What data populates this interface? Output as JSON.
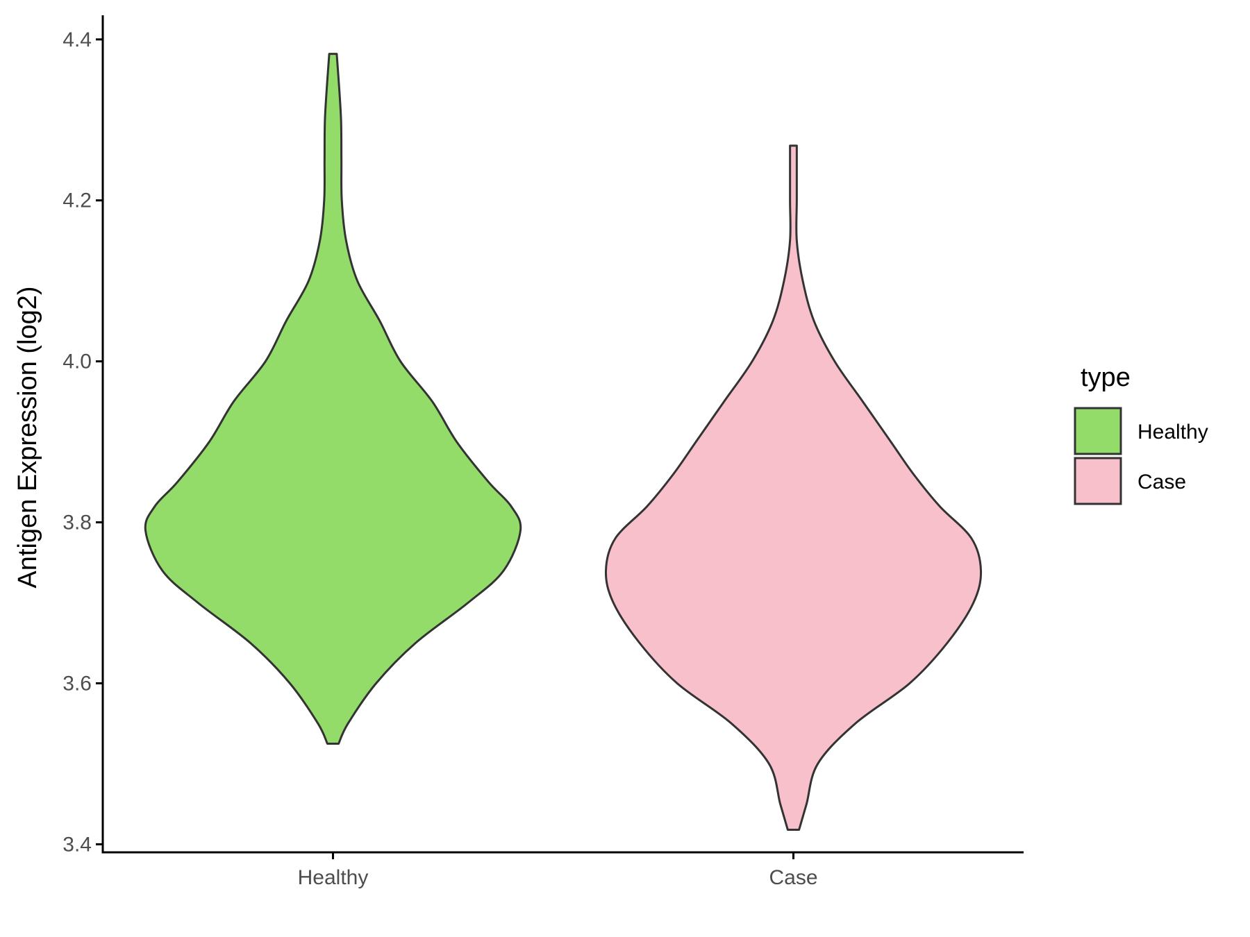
{
  "chart_data": {
    "type": "violin",
    "ylabel": "Antigen Expression (log2)",
    "xlabel": "",
    "ylim": [
      3.39,
      4.43
    ],
    "yticks": [
      3.4,
      3.6,
      3.8,
      4.0,
      4.2,
      4.4
    ],
    "ytick_labels": [
      "3.4",
      "3.6",
      "3.8",
      "4.0",
      "4.2",
      "4.4"
    ],
    "categories": [
      "Healthy",
      "Case"
    ],
    "grid": false,
    "legend": {
      "title": "type",
      "placement": "right",
      "entries": [
        "Healthy",
        "Case"
      ]
    },
    "series": [
      {
        "name": "Healthy",
        "color": "#93dc6a",
        "min": 3.525,
        "max": 4.382,
        "profile": [
          [
            3.525,
            0.03
          ],
          [
            3.55,
            0.08
          ],
          [
            3.6,
            0.23
          ],
          [
            3.65,
            0.44
          ],
          [
            3.7,
            0.72
          ],
          [
            3.74,
            0.91
          ],
          [
            3.79,
            1.0
          ],
          [
            3.82,
            0.95
          ],
          [
            3.85,
            0.83
          ],
          [
            3.9,
            0.66
          ],
          [
            3.95,
            0.53
          ],
          [
            4.0,
            0.36
          ],
          [
            4.05,
            0.25
          ],
          [
            4.1,
            0.13
          ],
          [
            4.15,
            0.07
          ],
          [
            4.2,
            0.047
          ],
          [
            4.25,
            0.045
          ],
          [
            4.3,
            0.043
          ],
          [
            4.35,
            0.03
          ],
          [
            4.382,
            0.02
          ]
        ]
      },
      {
        "name": "Case",
        "color": "#f8c0cb",
        "min": 3.418,
        "max": 4.268,
        "profile": [
          [
            3.418,
            0.03
          ],
          [
            3.45,
            0.07
          ],
          [
            3.5,
            0.13
          ],
          [
            3.55,
            0.33
          ],
          [
            3.6,
            0.62
          ],
          [
            3.65,
            0.82
          ],
          [
            3.7,
            0.96
          ],
          [
            3.74,
            1.0
          ],
          [
            3.78,
            0.95
          ],
          [
            3.82,
            0.78
          ],
          [
            3.86,
            0.64
          ],
          [
            3.9,
            0.52
          ],
          [
            3.95,
            0.37
          ],
          [
            4.0,
            0.22
          ],
          [
            4.05,
            0.11
          ],
          [
            4.1,
            0.05
          ],
          [
            4.15,
            0.015
          ],
          [
            4.2,
            -0.01
          ],
          [
            4.25,
            0.0
          ],
          [
            4.268,
            0.015
          ]
        ]
      }
    ]
  }
}
